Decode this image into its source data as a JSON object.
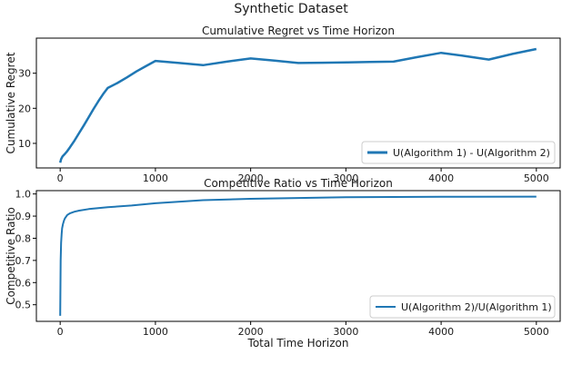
{
  "figure_title": "Synthetic Dataset",
  "colors": {
    "line": "#1f77b4",
    "axis": "#000000",
    "text": "#1a1a1a"
  },
  "chart_data": [
    {
      "type": "line",
      "title": "Cumulative Regret vs Time Horizon",
      "xlabel": "",
      "ylabel": "Cumulative Regret",
      "xlim": [
        -250,
        5250
      ],
      "ylim": [
        3,
        40
      ],
      "xticks": [
        0,
        1000,
        2000,
        3000,
        4000,
        5000
      ],
      "xtick_labels": [
        "0",
        "1000",
        "2000",
        "3000",
        "4000",
        "5000"
      ],
      "yticks": [
        10,
        20,
        30
      ],
      "ytick_labels": [
        "10",
        "20",
        "30"
      ],
      "legend": "lower-right",
      "grid": false,
      "series": [
        {
          "name": "U(Algorithm 1) - U(Algorithm 2)",
          "x": [
            0,
            10,
            25,
            50,
            75,
            100,
            150,
            200,
            250,
            300,
            350,
            400,
            450,
            500,
            600,
            700,
            800,
            900,
            1000,
            1250,
            1500,
            1750,
            2000,
            2250,
            2500,
            2750,
            3000,
            3250,
            3500,
            3750,
            4000,
            4250,
            4500,
            4750,
            5000
          ],
          "y": [
            4.5,
            5.5,
            6.3,
            7.0,
            7.8,
            8.8,
            10.8,
            13.0,
            15.2,
            17.5,
            19.8,
            22.0,
            24.0,
            25.8,
            27.2,
            28.8,
            30.5,
            32.0,
            33.5,
            32.9,
            32.3,
            33.3,
            34.2,
            33.6,
            32.9,
            33.0,
            33.1,
            33.2,
            33.3,
            34.6,
            35.8,
            34.9,
            33.9,
            35.5,
            36.9
          ]
        }
      ]
    },
    {
      "type": "line",
      "title": "Competitive Ratio vs Time Horizon",
      "xlabel": "Total Time Horizon",
      "ylabel": "Competitive Ratio",
      "xlim": [
        -250,
        5250
      ],
      "ylim": [
        0.425,
        1.015
      ],
      "xticks": [
        0,
        1000,
        2000,
        3000,
        4000,
        5000
      ],
      "xtick_labels": [
        "0",
        "1000",
        "2000",
        "3000",
        "4000",
        "5000"
      ],
      "yticks": [
        0.5,
        0.6,
        0.7,
        0.8,
        0.9,
        1.0
      ],
      "ytick_labels": [
        "0.5",
        "0.6",
        "0.7",
        "0.8",
        "0.9",
        "1.0"
      ],
      "legend": "lower-right",
      "grid": false,
      "series": [
        {
          "name": "U(Algorithm 2)/U(Algorithm 1)",
          "x": [
            0,
            5,
            10,
            15,
            20,
            30,
            40,
            50,
            75,
            100,
            150,
            200,
            300,
            500,
            750,
            1000,
            1500,
            2000,
            3000,
            4000,
            5000
          ],
          "y": [
            0.45,
            0.7,
            0.78,
            0.82,
            0.845,
            0.865,
            0.88,
            0.89,
            0.905,
            0.912,
            0.92,
            0.925,
            0.932,
            0.94,
            0.948,
            0.958,
            0.972,
            0.978,
            0.985,
            0.987,
            0.988
          ]
        }
      ]
    }
  ]
}
